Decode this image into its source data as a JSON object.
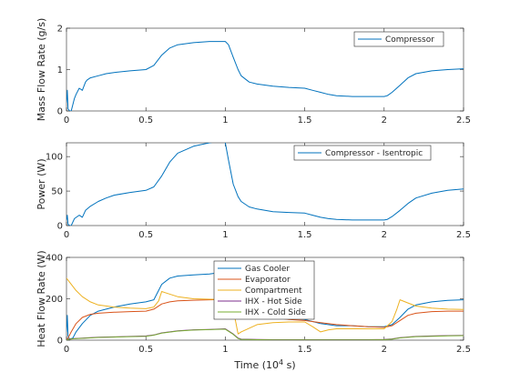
{
  "chart_data": [
    {
      "type": "line",
      "ylabel": "Mass Flow Rate (g/s)",
      "xlim": [
        0,
        2.5
      ],
      "ylim": [
        0,
        2
      ],
      "xticks": [
        "0",
        "0.5",
        "1",
        "1.5",
        "2",
        "2.5"
      ],
      "yticks": [
        "0",
        "1",
        "2"
      ],
      "legend_position": "top-right",
      "series": [
        {
          "name": "Compressor",
          "color": "#0072BD",
          "x": [
            0,
            0.005,
            0.01,
            0.02,
            0.03,
            0.05,
            0.06,
            0.08,
            0.1,
            0.12,
            0.13,
            0.15,
            0.2,
            0.25,
            0.3,
            0.4,
            0.5,
            0.55,
            0.6,
            0.65,
            0.7,
            0.8,
            0.9,
            1.0,
            1.02,
            1.05,
            1.08,
            1.1,
            1.15,
            1.2,
            1.3,
            1.4,
            1.5,
            1.55,
            1.6,
            1.65,
            1.7,
            1.8,
            1.9,
            2.0,
            2.02,
            2.05,
            2.1,
            2.15,
            2.2,
            2.3,
            2.4,
            2.5
          ],
          "y": [
            0.2,
            0.5,
            0.05,
            0.0,
            0.0,
            0.3,
            0.4,
            0.55,
            0.5,
            0.7,
            0.75,
            0.8,
            0.85,
            0.9,
            0.93,
            0.97,
            1.0,
            1.1,
            1.35,
            1.52,
            1.6,
            1.65,
            1.68,
            1.68,
            1.6,
            1.3,
            1.0,
            0.85,
            0.7,
            0.65,
            0.6,
            0.57,
            0.55,
            0.5,
            0.45,
            0.4,
            0.37,
            0.35,
            0.35,
            0.35,
            0.37,
            0.45,
            0.62,
            0.8,
            0.9,
            0.97,
            1.0,
            1.02
          ]
        }
      ]
    },
    {
      "type": "line",
      "ylabel": "Power (W)",
      "xlim": [
        0,
        2.5
      ],
      "ylim": [
        0,
        120
      ],
      "xticks": [
        "0",
        "0.5",
        "1",
        "1.5",
        "2",
        "2.5"
      ],
      "yticks": [
        "0",
        "50",
        "100"
      ],
      "legend_position": "top-right",
      "series": [
        {
          "name": "Compressor - Isentropic",
          "color": "#0072BD",
          "x": [
            0,
            0.005,
            0.01,
            0.02,
            0.03,
            0.05,
            0.08,
            0.1,
            0.12,
            0.15,
            0.2,
            0.25,
            0.3,
            0.4,
            0.5,
            0.55,
            0.6,
            0.65,
            0.7,
            0.8,
            0.9,
            0.98,
            1.0,
            1.02,
            1.05,
            1.08,
            1.1,
            1.15,
            1.2,
            1.3,
            1.4,
            1.5,
            1.55,
            1.6,
            1.65,
            1.7,
            1.8,
            1.9,
            2.0,
            2.02,
            2.05,
            2.1,
            2.15,
            2.2,
            2.3,
            2.4,
            2.5
          ],
          "y": [
            8,
            15,
            2,
            0,
            0,
            10,
            15,
            12,
            22,
            28,
            35,
            40,
            44,
            48,
            51,
            56,
            72,
            92,
            105,
            115,
            120,
            123,
            120,
            95,
            60,
            42,
            35,
            27,
            24,
            20,
            19,
            18,
            15,
            12,
            10,
            9,
            8,
            8,
            8,
            9,
            13,
            22,
            32,
            40,
            47,
            51,
            53
          ]
        }
      ]
    },
    {
      "type": "line",
      "ylabel": "Heat Flow Rate (W)",
      "xlabel": "Time (10^4 s)",
      "xlim": [
        0,
        2.5
      ],
      "ylim": [
        0,
        400
      ],
      "xticks": [
        "0",
        "0.5",
        "1",
        "1.5",
        "2",
        "2.5"
      ],
      "yticks": [
        "0",
        "200",
        "400"
      ],
      "legend_position": "top-center",
      "series": [
        {
          "name": "Gas Cooler",
          "color": "#0072BD",
          "x": [
            0,
            0.005,
            0.01,
            0.02,
            0.04,
            0.06,
            0.1,
            0.15,
            0.2,
            0.3,
            0.4,
            0.5,
            0.55,
            0.6,
            0.65,
            0.7,
            0.8,
            0.9,
            1.0,
            1.02,
            1.05,
            1.08,
            1.1,
            1.15,
            1.2,
            1.3,
            1.4,
            1.5,
            1.55,
            1.6,
            1.7,
            1.8,
            1.9,
            2.0,
            2.05,
            2.1,
            2.15,
            2.2,
            2.3,
            2.4,
            2.5
          ],
          "y": [
            40,
            120,
            20,
            5,
            10,
            40,
            80,
            120,
            140,
            160,
            175,
            185,
            195,
            270,
            300,
            310,
            315,
            320,
            330,
            320,
            290,
            230,
            180,
            150,
            135,
            120,
            110,
            100,
            90,
            80,
            70,
            70,
            65,
            65,
            75,
            110,
            150,
            170,
            185,
            192,
            195
          ]
        },
        {
          "name": "Evaporator",
          "color": "#D95319",
          "x": [
            0,
            0.01,
            0.03,
            0.06,
            0.1,
            0.15,
            0.2,
            0.3,
            0.4,
            0.5,
            0.55,
            0.6,
            0.65,
            0.7,
            0.8,
            0.9,
            1.0,
            1.05,
            1.1,
            1.2,
            1.3,
            1.4,
            1.5,
            1.6,
            1.7,
            1.8,
            1.9,
            2.0,
            2.05,
            2.1,
            2.15,
            2.2,
            2.3,
            2.4,
            2.5
          ],
          "y": [
            0,
            10,
            40,
            80,
            110,
            125,
            130,
            135,
            138,
            140,
            150,
            175,
            185,
            190,
            193,
            195,
            197,
            180,
            150,
            125,
            110,
            100,
            95,
            85,
            75,
            70,
            65,
            62,
            70,
            95,
            120,
            130,
            138,
            140,
            140
          ]
        },
        {
          "name": "Compartment",
          "color": "#EDB120",
          "x": [
            0,
            0.03,
            0.06,
            0.1,
            0.15,
            0.2,
            0.3,
            0.4,
            0.5,
            0.55,
            0.58,
            0.6,
            0.62,
            0.7,
            0.8,
            0.9,
            1.0,
            1.05,
            1.08,
            1.1,
            1.2,
            1.3,
            1.4,
            1.5,
            1.55,
            1.6,
            1.65,
            1.7,
            1.8,
            1.9,
            2.0,
            2.05,
            2.08,
            2.1,
            2.15,
            2.2,
            2.3,
            2.4,
            2.5
          ],
          "y": [
            300,
            270,
            240,
            210,
            185,
            170,
            160,
            155,
            152,
            160,
            190,
            235,
            230,
            210,
            200,
            198,
            196,
            150,
            30,
            40,
            75,
            85,
            88,
            88,
            65,
            40,
            50,
            55,
            55,
            55,
            55,
            90,
            150,
            195,
            180,
            165,
            155,
            150,
            148
          ]
        },
        {
          "name": "IHX - Hot Side",
          "color": "#7E2F8E",
          "x": [
            0,
            0.01,
            0.05,
            0.1,
            0.2,
            0.3,
            0.4,
            0.5,
            0.55,
            0.6,
            0.7,
            0.8,
            0.9,
            1.0,
            1.05,
            1.08,
            1.1,
            1.2,
            1.3,
            1.4,
            1.5,
            1.6,
            1.7,
            1.8,
            1.9,
            2.0,
            2.05,
            2.1,
            2.2,
            2.3,
            2.4,
            2.5
          ],
          "y": [
            0,
            5,
            8,
            10,
            14,
            16,
            18,
            20,
            25,
            35,
            45,
            50,
            52,
            55,
            30,
            10,
            5,
            3,
            2,
            2,
            2,
            2,
            2,
            2,
            2,
            3,
            6,
            12,
            18,
            20,
            22,
            23
          ]
        },
        {
          "name": "IHX - Cold Side",
          "color": "#77AC30",
          "x": [
            0,
            0.01,
            0.05,
            0.1,
            0.2,
            0.3,
            0.4,
            0.5,
            0.55,
            0.6,
            0.7,
            0.8,
            0.9,
            1.0,
            1.05,
            1.08,
            1.1,
            1.2,
            1.3,
            1.4,
            1.5,
            1.6,
            1.7,
            1.8,
            1.9,
            2.0,
            2.05,
            2.1,
            2.2,
            2.3,
            2.4,
            2.5
          ],
          "y": [
            0,
            4,
            7,
            9,
            13,
            15,
            17,
            19,
            24,
            34,
            44,
            49,
            51,
            53,
            28,
            8,
            4,
            2,
            1,
            1,
            1,
            1,
            1,
            1,
            1,
            2,
            5,
            11,
            17,
            19,
            21,
            22
          ]
        }
      ]
    }
  ]
}
